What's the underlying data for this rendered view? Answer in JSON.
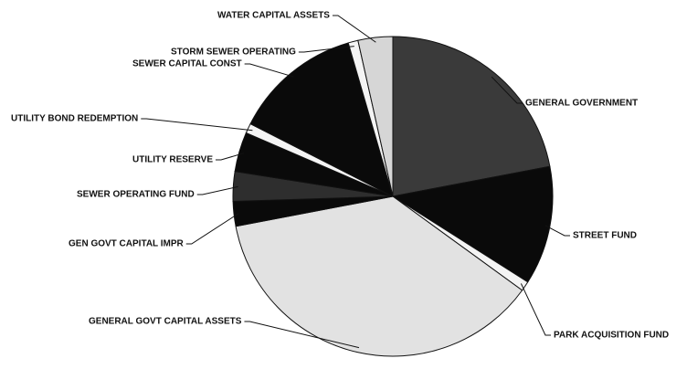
{
  "chart_data": {
    "type": "pie",
    "categories": [
      "GENERAL GOVERNMENT",
      "STREET FUND",
      "PARK ACQUISITION FUND",
      "GENERAL GOVT CAPITAL ASSETS",
      "GEN GOVT CAPITAL IMPR",
      "SEWER OPERATING FUND",
      "UTILITY RESERVE",
      "UTILITY BOND REDEMPTION",
      "SEWER CAPITAL CONST",
      "STORM SEWER OPERATING",
      "WATER CAPITAL ASSETS"
    ],
    "values": [
      22,
      12,
      1,
      37,
      2.5,
      3,
      4,
      1,
      13,
      1,
      3.5
    ],
    "colors": [
      "#3a3a3a",
      "#0a0a0a",
      "#f4f4f4",
      "#e2e2e2",
      "#0a0a0a",
      "#2e2e2e",
      "#0a0a0a",
      "#f4f4f4",
      "#0a0a0a",
      "#f4f4f4",
      "#d6d6d6"
    ]
  }
}
